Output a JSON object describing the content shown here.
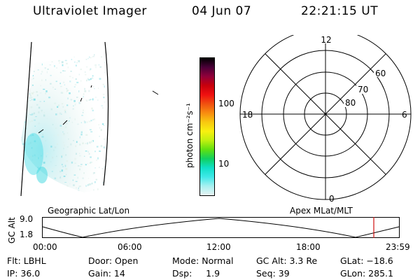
{
  "header": {
    "title": "Ultraviolet Imager",
    "date": "04 Jun 07",
    "time": "22:21:15 UT"
  },
  "colorbar": {
    "unit_label": "photon cm⁻²s⁻¹",
    "ticks": [
      "100",
      "10"
    ],
    "colors": [
      "#000000",
      "#4a0038",
      "#90003a",
      "#c8000c",
      "#f01010",
      "#f05010",
      "#f88c10",
      "#f8c810",
      "#f8f010",
      "#c0f010",
      "#60e010",
      "#10d060",
      "#10e0c8",
      "#40e8e8",
      "#a8f0f0",
      "#e8f4f4"
    ]
  },
  "polar_plot": {
    "mlt_labels": {
      "top": "12",
      "left": "18",
      "right": "6",
      "bottom": "0"
    },
    "mlat_labels": [
      "60",
      "70",
      "80"
    ]
  },
  "timeline": {
    "y_axis_label": "GC Alt",
    "y_ticks": [
      "9.0",
      "1.8"
    ],
    "left_caption": "Geographic Lat/Lon",
    "right_caption": "Apex MLat/MLT",
    "x_ticks": [
      "00:00",
      "06:00",
      "12:00",
      "18:00",
      "23:59"
    ],
    "marker_color": "#d01010"
  },
  "info": {
    "flt": "Flt: LBHL",
    "ip": "IP: 36.0",
    "door": "Door: Open",
    "gain": "Gain: 14",
    "mode": "Mode: Normal",
    "dsp": "Dsp:     1.9",
    "gc_alt": "GC Alt: 3.3 Re",
    "seq": "Seq: 39",
    "glat": "GLat: −18.6",
    "glon": "GLon: 285.1"
  }
}
